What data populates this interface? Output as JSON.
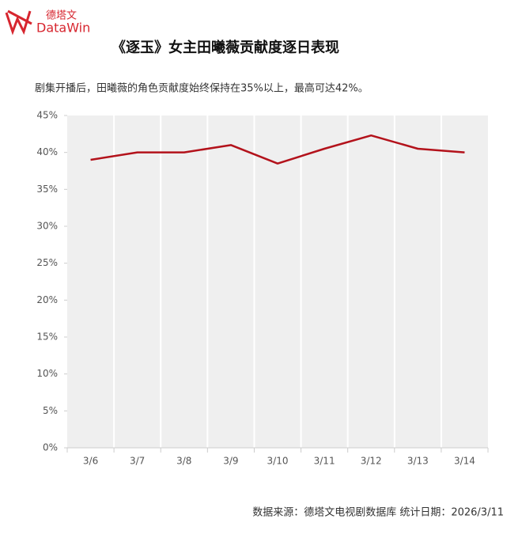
{
  "logo": {
    "cn": "德塔文",
    "en": "DataWin"
  },
  "chart_data": {
    "type": "line",
    "title": "《逐玉》女主田曦薇贡献度逐日表现",
    "subtitle": "剧集开播后，田曦薇的角色贡献度始终保持在35%以上，最高可达42%。",
    "categories": [
      "3/6",
      "3/7",
      "3/8",
      "3/9",
      "3/10",
      "3/11",
      "3/12",
      "3/13",
      "3/14"
    ],
    "series": [
      {
        "color": "#b3121b",
        "values": [
          39,
          40,
          40,
          41,
          38.5,
          40.5,
          42.3,
          40.5,
          40
        ]
      }
    ],
    "ylim": [
      0,
      45
    ],
    "yticks": [
      {
        "value": 0,
        "label": "0%"
      },
      {
        "value": 5,
        "label": "5%"
      },
      {
        "value": 10,
        "label": "10%"
      },
      {
        "value": 15,
        "label": "15%"
      },
      {
        "value": 20,
        "label": "20%"
      },
      {
        "value": 25,
        "label": "25%"
      },
      {
        "value": 30,
        "label": "30%"
      },
      {
        "value": 35,
        "label": "35%"
      },
      {
        "value": 40,
        "label": "40%"
      },
      {
        "value": 45,
        "label": "45%"
      }
    ]
  },
  "footer": {
    "source": "数据来源：德塔文电视剧数据库   统计日期：2026/3/11"
  }
}
